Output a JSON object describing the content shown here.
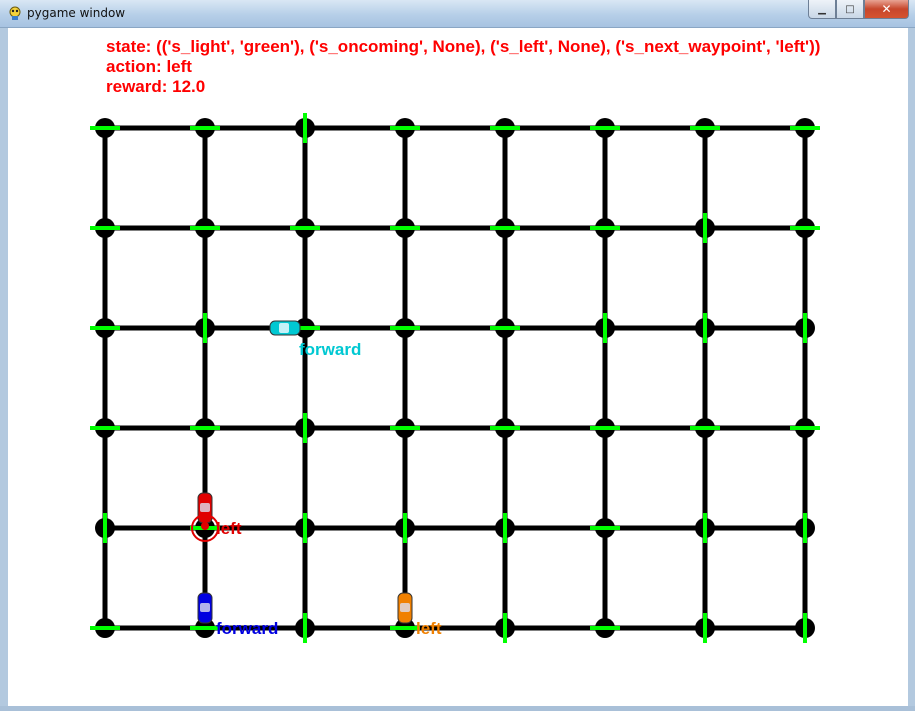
{
  "window": {
    "title": "pygame window",
    "minimize_glyph": "▁",
    "maximize_glyph": "□",
    "close_glyph": "✕"
  },
  "hud": {
    "state": "state: (('s_light', 'green'), ('s_oncoming', None), ('s_left', None), ('s_next_waypoint', 'left'))",
    "action": "action: left",
    "reward": "reward: 12.0"
  },
  "grid": {
    "columns": 8,
    "rows": 6,
    "road_color": "#000000",
    "signal_color": "#00ff00"
  },
  "signals": [
    [
      "h",
      "h",
      "v",
      "h",
      "h",
      "h",
      "h",
      "h"
    ],
    [
      "h",
      "h",
      "h",
      "h",
      "h",
      "h",
      "v",
      "h"
    ],
    [
      "h",
      "v",
      "h",
      "h",
      "h",
      "v",
      "v",
      "v"
    ],
    [
      "h",
      "h",
      "v",
      "h",
      "h",
      "h",
      "h",
      "h"
    ],
    [
      "v",
      "h",
      "v",
      "v",
      "v",
      "h",
      "v",
      "v"
    ],
    [
      "h",
      "h",
      "v",
      "h",
      "v",
      "h",
      "v",
      "v"
    ]
  ],
  "cars": [
    {
      "name": "cyan",
      "color": "#00c8d2",
      "col": 1.8,
      "row": 2,
      "heading": "horizontal",
      "label": "forward",
      "primary": false
    },
    {
      "name": "red",
      "color": "#e00000",
      "col": 1,
      "row": 3.8,
      "heading": "vertical",
      "label": "left",
      "primary": true
    },
    {
      "name": "blue",
      "color": "#0000e0",
      "col": 1,
      "row": 4.8,
      "heading": "vertical",
      "label": "forward",
      "primary": false
    },
    {
      "name": "orange",
      "color": "#f08000",
      "col": 3,
      "row": 4.8,
      "heading": "vertical",
      "label": "left",
      "primary": false
    }
  ]
}
